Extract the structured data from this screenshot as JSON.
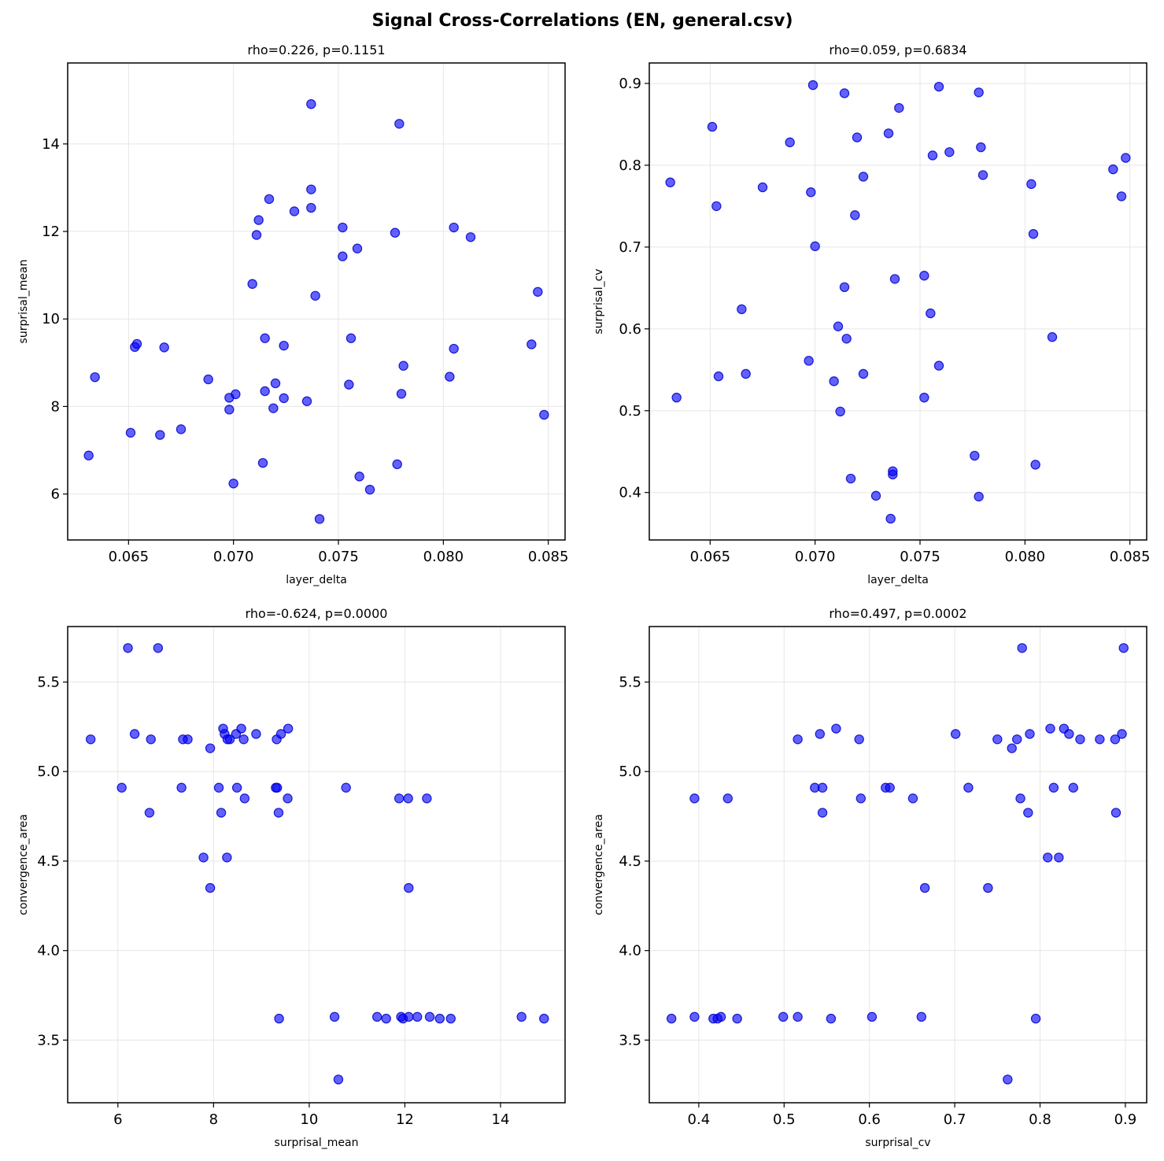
{
  "figure_title": "Signal Cross-Correlations (EN, general.csv)",
  "point_color": "#0000ff",
  "chart_data": [
    {
      "type": "scatter",
      "title": "rho=0.226, p=0.1151",
      "xlabel": "layer_delta",
      "ylabel": "surprisal_mean",
      "xlim": [
        0.0621,
        0.0858
      ],
      "ylim": [
        4.95,
        15.85
      ],
      "xticks": [
        0.065,
        0.07,
        0.075,
        0.08,
        0.085
      ],
      "xtick_labels": [
        "0.065",
        "0.070",
        "0.075",
        "0.080",
        "0.085"
      ],
      "yticks": [
        6,
        8,
        10,
        12,
        14
      ],
      "ytick_labels": [
        "6",
        "8",
        "10",
        "12",
        "14"
      ],
      "x": [
        0.0631,
        0.0634,
        0.0651,
        0.0653,
        0.0654,
        0.0665,
        0.0667,
        0.0675,
        0.0688,
        0.0698,
        0.0698,
        0.07,
        0.0701,
        0.0709,
        0.0711,
        0.0712,
        0.0714,
        0.0715,
        0.0715,
        0.0717,
        0.0719,
        0.072,
        0.0724,
        0.0724,
        0.0729,
        0.0735,
        0.0737,
        0.0737,
        0.0737,
        0.0739,
        0.0741,
        0.0752,
        0.0752,
        0.0755,
        0.0756,
        0.0759,
        0.076,
        0.0765,
        0.0777,
        0.0779,
        0.0778,
        0.078,
        0.0781,
        0.0803,
        0.0805,
        0.0805,
        0.0813,
        0.0842,
        0.0845,
        0.0848
      ],
      "y": [
        6.88,
        8.67,
        7.4,
        9.36,
        9.43,
        7.35,
        9.35,
        7.48,
        8.62,
        7.93,
        8.2,
        6.24,
        8.28,
        10.8,
        11.92,
        12.26,
        6.71,
        9.56,
        8.35,
        12.74,
        7.96,
        8.53,
        9.39,
        8.19,
        12.46,
        8.12,
        14.91,
        12.96,
        12.54,
        10.53,
        5.43,
        12.09,
        11.43,
        8.5,
        9.56,
        11.61,
        6.4,
        6.1,
        11.97,
        14.46,
        6.68,
        8.29,
        8.93,
        8.68,
        9.32,
        12.09,
        11.87,
        9.42,
        10.62,
        7.81
      ]
    },
    {
      "type": "scatter",
      "title": "rho=0.059, p=0.6834",
      "xlabel": "layer_delta",
      "ylabel": "surprisal_cv",
      "xlim": [
        0.0621,
        0.0858
      ],
      "ylim": [
        0.342,
        0.925
      ],
      "xticks": [
        0.065,
        0.07,
        0.075,
        0.08,
        0.085
      ],
      "xtick_labels": [
        "0.065",
        "0.070",
        "0.075",
        "0.080",
        "0.085"
      ],
      "yticks": [
        0.4,
        0.5,
        0.6,
        0.7,
        0.8,
        0.9
      ],
      "ytick_labels": [
        "0.4",
        "0.5",
        "0.6",
        "0.7",
        "0.8",
        "0.9"
      ],
      "x": [
        0.0631,
        0.0634,
        0.0651,
        0.0653,
        0.0654,
        0.0665,
        0.0667,
        0.0675,
        0.0688,
        0.0697,
        0.0698,
        0.0699,
        0.07,
        0.0709,
        0.0711,
        0.0712,
        0.0714,
        0.0714,
        0.0715,
        0.0717,
        0.0719,
        0.072,
        0.0723,
        0.0723,
        0.0729,
        0.0735,
        0.0736,
        0.0737,
        0.0737,
        0.0738,
        0.074,
        0.0752,
        0.0752,
        0.0755,
        0.0756,
        0.0759,
        0.0759,
        0.0764,
        0.0776,
        0.0778,
        0.0778,
        0.0779,
        0.078,
        0.0803,
        0.0804,
        0.0805,
        0.0813,
        0.0842,
        0.0846,
        0.0848
      ],
      "y": [
        0.779,
        0.516,
        0.847,
        0.75,
        0.542,
        0.624,
        0.545,
        0.773,
        0.828,
        0.561,
        0.767,
        0.898,
        0.701,
        0.536,
        0.603,
        0.499,
        0.888,
        0.651,
        0.588,
        0.417,
        0.739,
        0.834,
        0.545,
        0.786,
        0.396,
        0.839,
        0.368,
        0.422,
        0.426,
        0.661,
        0.87,
        0.665,
        0.516,
        0.619,
        0.812,
        0.896,
        0.555,
        0.816,
        0.445,
        0.889,
        0.395,
        0.822,
        0.788,
        0.777,
        0.716,
        0.434,
        0.59,
        0.795,
        0.762,
        0.809
      ]
    },
    {
      "type": "scatter",
      "title": "rho=-0.624, p=0.0000",
      "xlabel": "surprisal_mean",
      "ylabel": "convergence_area",
      "xlim": [
        4.95,
        15.35
      ],
      "ylim": [
        3.15,
        5.81
      ],
      "xticks": [
        6,
        8,
        10,
        12,
        14
      ],
      "xtick_labels": [
        "6",
        "8",
        "10",
        "12",
        "14"
      ],
      "yticks": [
        3.5,
        4.0,
        4.5,
        5.0,
        5.5
      ],
      "ytick_labels": [
        "3.5",
        "4.0",
        "4.5",
        "5.0",
        "5.5"
      ],
      "x": [
        5.43,
        6.08,
        6.21,
        6.35,
        6.66,
        6.69,
        6.84,
        7.33,
        7.36,
        7.46,
        7.79,
        7.93,
        7.93,
        8.11,
        8.16,
        8.2,
        8.23,
        8.28,
        8.29,
        8.34,
        8.47,
        8.49,
        8.58,
        8.63,
        8.65,
        8.89,
        9.3,
        9.32,
        9.33,
        9.36,
        9.37,
        9.41,
        9.55,
        9.56,
        10.53,
        10.61,
        10.77,
        11.42,
        11.61,
        11.88,
        11.92,
        11.96,
        12.07,
        12.08,
        12.08,
        12.26,
        12.46,
        12.52,
        12.73,
        12.96,
        14.44,
        14.91
      ],
      "y": [
        5.18,
        4.91,
        5.69,
        5.21,
        4.77,
        5.18,
        5.69,
        4.91,
        5.18,
        5.18,
        4.52,
        5.13,
        4.35,
        4.91,
        4.77,
        5.24,
        5.21,
        4.52,
        5.18,
        5.18,
        5.21,
        4.91,
        5.24,
        5.18,
        4.85,
        5.21,
        4.91,
        5.18,
        4.91,
        4.77,
        3.62,
        5.21,
        4.85,
        5.24,
        3.63,
        3.28,
        4.91,
        3.63,
        3.62,
        4.85,
        3.63,
        3.62,
        4.85,
        3.63,
        4.35,
        3.63,
        4.85,
        3.63,
        3.62,
        3.62,
        3.63,
        3.62
      ]
    },
    {
      "type": "scatter",
      "title": "rho=0.497, p=0.0002",
      "xlabel": "surprisal_cv",
      "ylabel": "convergence_area",
      "xlim": [
        0.342,
        0.925
      ],
      "ylim": [
        3.15,
        5.81
      ],
      "xticks": [
        0.4,
        0.5,
        0.6,
        0.7,
        0.8,
        0.9
      ],
      "xtick_labels": [
        "0.4",
        "0.5",
        "0.6",
        "0.7",
        "0.8",
        "0.9"
      ],
      "yticks": [
        3.5,
        4.0,
        4.5,
        5.0,
        5.5
      ],
      "ytick_labels": [
        "3.5",
        "4.0",
        "4.5",
        "5.0",
        "5.5"
      ],
      "x": [
        0.368,
        0.395,
        0.395,
        0.417,
        0.422,
        0.426,
        0.434,
        0.445,
        0.499,
        0.516,
        0.516,
        0.536,
        0.542,
        0.545,
        0.545,
        0.555,
        0.561,
        0.588,
        0.59,
        0.603,
        0.619,
        0.624,
        0.651,
        0.661,
        0.665,
        0.701,
        0.716,
        0.739,
        0.75,
        0.762,
        0.767,
        0.773,
        0.777,
        0.779,
        0.786,
        0.788,
        0.795,
        0.809,
        0.812,
        0.816,
        0.822,
        0.828,
        0.834,
        0.839,
        0.847,
        0.87,
        0.888,
        0.889,
        0.896,
        0.898
      ],
      "y": [
        3.62,
        3.63,
        4.85,
        3.62,
        3.62,
        3.63,
        4.85,
        3.62,
        3.63,
        3.63,
        5.18,
        4.91,
        5.21,
        4.91,
        4.77,
        3.62,
        5.24,
        5.18,
        4.85,
        3.63,
        4.91,
        4.91,
        4.85,
        3.63,
        4.35,
        5.21,
        4.91,
        4.35,
        5.18,
        3.28,
        5.13,
        5.18,
        4.85,
        5.69,
        4.77,
        5.21,
        3.62,
        4.52,
        5.24,
        4.91,
        4.52,
        5.24,
        5.21,
        4.91,
        5.18,
        5.18,
        5.18,
        4.77,
        5.21,
        5.69
      ]
    }
  ]
}
